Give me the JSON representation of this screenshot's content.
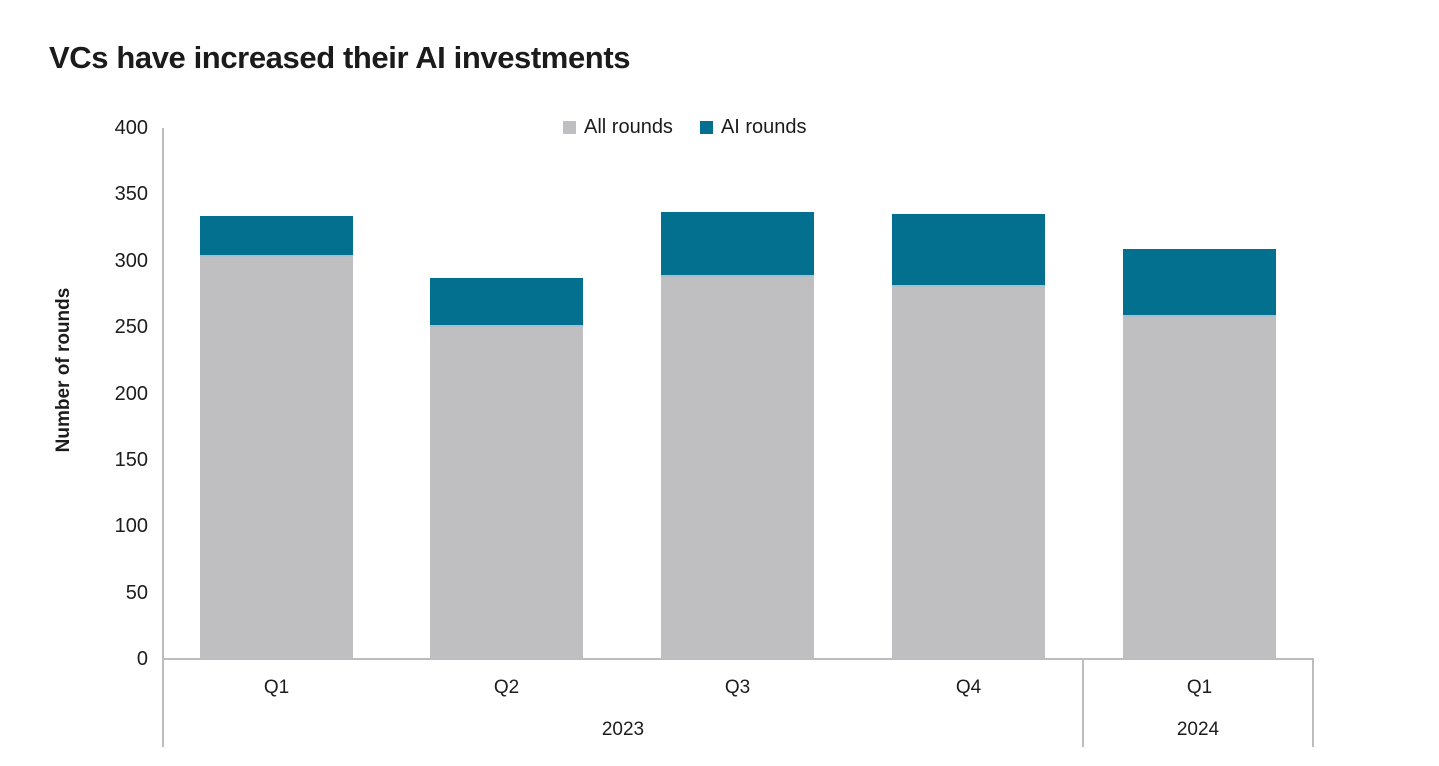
{
  "title": "VCs have increased their AI investments",
  "legend": [
    {
      "label": "All rounds",
      "color": "#bfbfc1"
    },
    {
      "label": "AI rounds",
      "color": "#02708e"
    }
  ],
  "chart_data": {
    "type": "bar",
    "stacked": true,
    "title": "VCs have increased their AI investments",
    "ylabel": "Number of rounds",
    "ylim": [
      0,
      400
    ],
    "yticks": [
      400,
      350,
      300,
      250,
      200,
      150,
      100,
      50,
      0
    ],
    "grid": false,
    "legend_position": "top-center",
    "categories": [
      "Q1",
      "Q2",
      "Q3",
      "Q4",
      "Q1"
    ],
    "groups": [
      {
        "year": "2023",
        "category_indexes": [
          0,
          1,
          2,
          3
        ]
      },
      {
        "year": "2024",
        "category_indexes": [
          4
        ]
      }
    ],
    "series": [
      {
        "name": "All rounds",
        "color": "#bfbfc1",
        "values": [
          303,
          250,
          288,
          280,
          258
        ]
      },
      {
        "name": "AI rounds",
        "color": "#02708e",
        "values": [
          31,
          37,
          49,
          55,
          51
        ]
      }
    ],
    "totals": [
      334,
      287,
      337,
      335,
      309
    ]
  },
  "colors": {
    "axis_line": "#bdbdbd",
    "segment_divider": "#a9bec9",
    "text": "#1c1c1c"
  }
}
